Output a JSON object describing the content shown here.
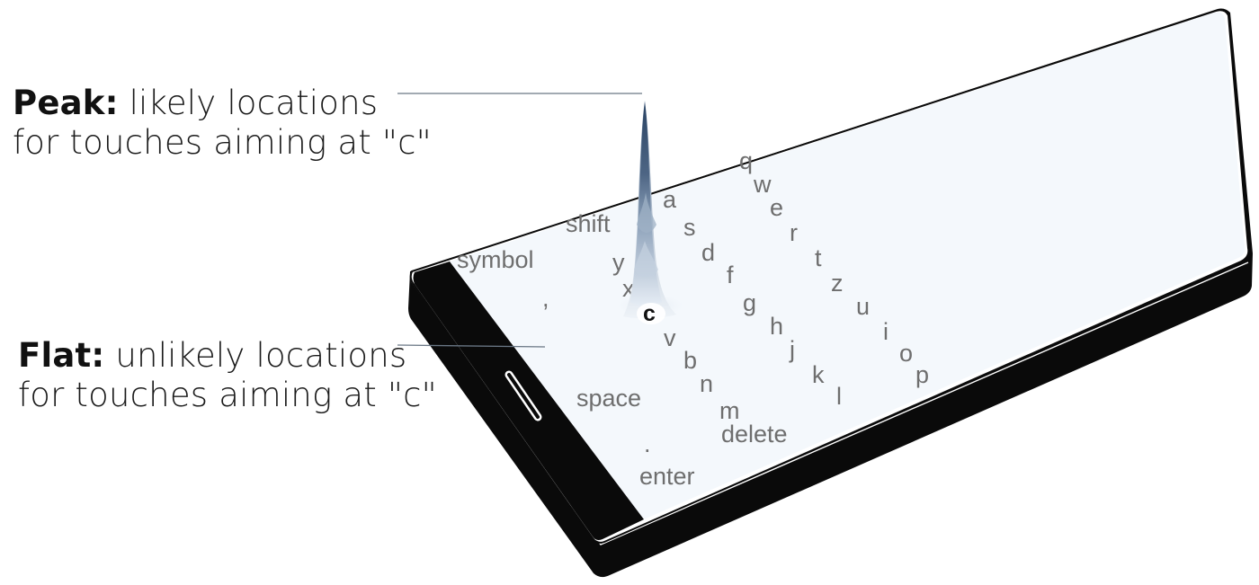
{
  "captions": {
    "peak": {
      "head": "Peak:",
      "rest": "likely locations",
      "line2": "for touches aiming at \"c\""
    },
    "flat": {
      "head": "Flat:",
      "rest": "unlikely locations",
      "line2": "for touches aiming at \"c\""
    }
  },
  "keyboard": {
    "target_key": "c",
    "labels": {
      "q": "q",
      "w": "w",
      "e": "e",
      "r": "r",
      "t": "t",
      "z": "z",
      "u": "u",
      "i": "i",
      "o": "o",
      "p": "p",
      "a": "a",
      "s": "s",
      "d": "d",
      "f": "f",
      "g": "g",
      "h": "h",
      "j": "j",
      "k": "k",
      "l": "l",
      "y": "y",
      "x": "x",
      "c": "c",
      "v": "v",
      "b": "b",
      "n": "n",
      "m": "m",
      "shift": "shift",
      "symbol": "symbol",
      "comma": ",",
      "space": "space",
      "period": ".",
      "enter": "enter",
      "delete": "delete"
    }
  },
  "colors": {
    "peak_dark": "#2f4868",
    "peak_mid": "#7d93ad",
    "peak_light": "#d5e0ec",
    "screen": "#f4f8fc",
    "body": "#0a0a0a",
    "key_text": "#6e6e6e"
  }
}
